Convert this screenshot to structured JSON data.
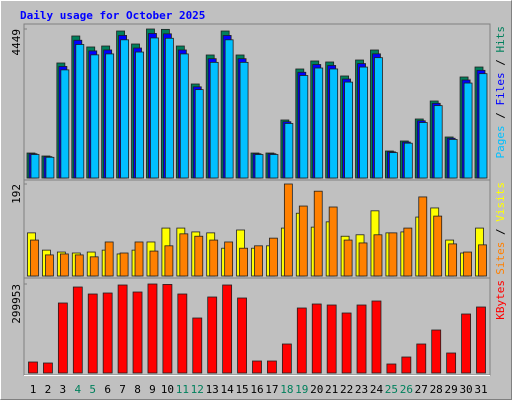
{
  "chart_data": [
    {
      "type": "bar",
      "title": "Daily usage for October 2025",
      "legend_separator": " / ",
      "series": [
        {
          "name": "Hits",
          "color": "#00805c",
          "values": [
            746,
            657,
            3434,
            4240,
            3912,
            3941,
            4389,
            4001,
            4449,
            4438,
            3941,
            2807,
            3673,
            4389,
            3673,
            746,
            746,
            1732,
            3255,
            3494,
            3464,
            3046,
            3523,
            3822,
            806,
            1105,
            1762,
            2299,
            1224,
            3016,
            3314
          ]
        },
        {
          "name": "Files",
          "color": "#0000ff",
          "values": [
            724,
            637,
            3331,
            4113,
            3795,
            3823,
            4257,
            3881,
            4316,
            4305,
            3823,
            2723,
            3563,
            4257,
            3563,
            724,
            724,
            1680,
            3157,
            3389,
            3360,
            2955,
            3417,
            3707,
            782,
            1072,
            1709,
            2230,
            1187,
            2926,
            3215
          ]
        },
        {
          "name": "Pages",
          "color": "#00c0ff",
          "values": [
            701,
            618,
            3228,
            3986,
            3677,
            3705,
            4126,
            3761,
            4182,
            4172,
            3705,
            2639,
            3453,
            4126,
            3453,
            701,
            701,
            1628,
            3060,
            3284,
            3256,
            2863,
            3312,
            3593,
            758,
            1039,
            1656,
            2161,
            1151,
            2835,
            3115
          ]
        }
      ],
      "ylim": [
        0,
        4449
      ],
      "yticks": [
        4449
      ]
    },
    {
      "type": "bar",
      "legend_separator": " / ",
      "series": [
        {
          "name": "Visits",
          "color": "#ffff00",
          "values": [
            90,
            54,
            50,
            48,
            50,
            54,
            46,
            54,
            71,
            100,
            100,
            92,
            90,
            58,
            96,
            58,
            63,
            100,
            131,
            102,
            113,
            83,
            86,
            136,
            90,
            92,
            123,
            142,
            75,
            48,
            100
          ]
        },
        {
          "name": "Sites",
          "color": "#ff8000",
          "values": [
            75,
            44,
            46,
            44,
            40,
            71,
            48,
            71,
            52,
            63,
            88,
            83,
            75,
            71,
            58,
            63,
            79,
            192,
            146,
            177,
            144,
            75,
            69,
            86,
            90,
            100,
            165,
            125,
            67,
            50,
            65
          ]
        }
      ],
      "ylim": [
        0,
        192
      ],
      "yticks": [
        192
      ]
    },
    {
      "type": "bar",
      "categories": [
        "1",
        "2",
        "3",
        "4",
        "5",
        "6",
        "7",
        "8",
        "9",
        "10",
        "11",
        "12",
        "13",
        "14",
        "15",
        "16",
        "17",
        "18",
        "19",
        "20",
        "21",
        "22",
        "23",
        "24",
        "25",
        "26",
        "27",
        "28",
        "29",
        "30",
        "31"
      ],
      "category_colors": [
        "#000000",
        "#000000",
        "#000000",
        "#00805c",
        "#00805c",
        "#000000",
        "#000000",
        "#000000",
        "#000000",
        "#000000",
        "#00805c",
        "#00805c",
        "#000000",
        "#000000",
        "#000000",
        "#000000",
        "#000000",
        "#00805c",
        "#00805c",
        "#000000",
        "#000000",
        "#000000",
        "#000000",
        "#000000",
        "#00805c",
        "#00805c",
        "#000000",
        "#000000",
        "#000000",
        "#000000",
        "#000000"
      ],
      "series": [
        {
          "name": "KBytes",
          "color": "#ff0000",
          "values": [
            37070,
            33700,
            235900,
            289820,
            266230,
            269600,
            296560,
            272970,
            299953,
            298500,
            266230,
            185350,
            256120,
            296560,
            252750,
            40440,
            40440,
            97730,
            219050,
            232530,
            229160,
            202200,
            229160,
            242640,
            30330,
            53920,
            97730,
            144910,
            67400,
            198830,
            222420
          ]
        }
      ],
      "ylim": [
        0,
        299953
      ],
      "yticks": [
        299953
      ]
    }
  ]
}
